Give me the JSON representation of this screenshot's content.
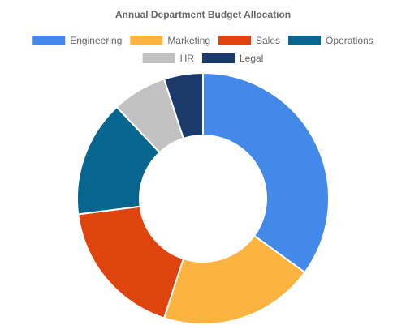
{
  "chart_data": {
    "type": "pie",
    "subtype": "doughnut",
    "title": "Annual Department Budget Allocation",
    "legend_position": "top",
    "categories": [
      "Engineering",
      "Marketing",
      "Sales",
      "Operations",
      "HR",
      "Legal"
    ],
    "values": [
      35,
      20,
      18,
      15,
      7,
      5
    ],
    "colors": [
      "#4289E9",
      "#FBB440",
      "#E0440E",
      "#06668F",
      "#C2C2C2",
      "#1A3A6B"
    ]
  }
}
